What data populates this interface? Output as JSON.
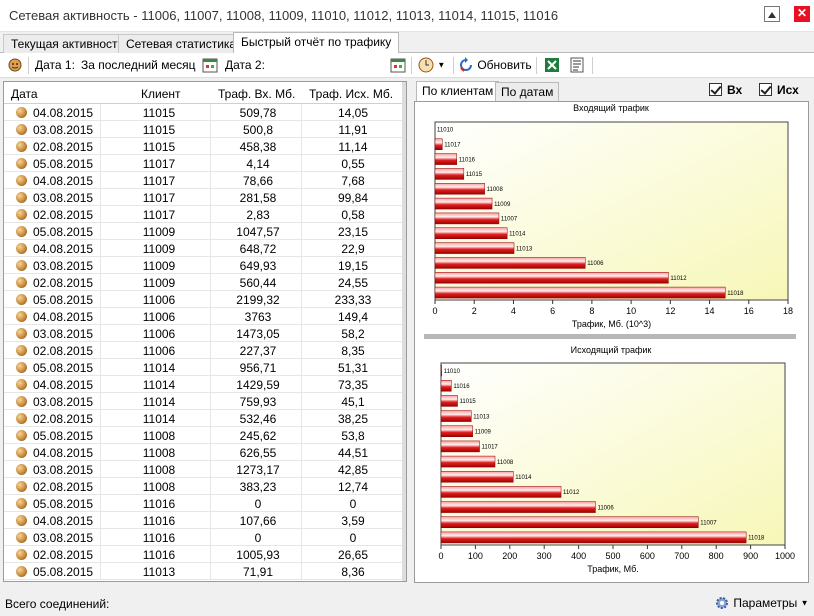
{
  "window": {
    "title": "Сетевая активность - 11006, 11007, 11008, 11009, 11010, 11012, 11013, 11014, 11015, 11016"
  },
  "tabs": [
    {
      "label": "Текущая активность"
    },
    {
      "label": "Сетевая статистика"
    },
    {
      "label": "Быстрый отчёт по трафику"
    }
  ],
  "toolbar": {
    "date1_label": "Дата 1:",
    "date1_value": "За последний месяц",
    "date2_label": "Дата 2:",
    "refresh_label": "Обновить"
  },
  "table": {
    "headers": [
      "Дата",
      "Клиент",
      "Траф. Вх. Мб.",
      "Траф. Исх. Мб."
    ],
    "rows": [
      [
        "04.08.2015",
        "11015",
        "509,78",
        "14,05"
      ],
      [
        "03.08.2015",
        "11015",
        "500,8",
        "11,91"
      ],
      [
        "02.08.2015",
        "11015",
        "458,38",
        "11,14"
      ],
      [
        "05.08.2015",
        "11017",
        "4,14",
        "0,55"
      ],
      [
        "04.08.2015",
        "11017",
        "78,66",
        "7,68"
      ],
      [
        "03.08.2015",
        "11017",
        "281,58",
        "99,84"
      ],
      [
        "02.08.2015",
        "11017",
        "2,83",
        "0,58"
      ],
      [
        "05.08.2015",
        "11009",
        "1047,57",
        "23,15"
      ],
      [
        "04.08.2015",
        "11009",
        "648,72",
        "22,9"
      ],
      [
        "03.08.2015",
        "11009",
        "649,93",
        "19,15"
      ],
      [
        "02.08.2015",
        "11009",
        "560,44",
        "24,55"
      ],
      [
        "05.08.2015",
        "11006",
        "2199,32",
        "233,33"
      ],
      [
        "04.08.2015",
        "11006",
        "3763",
        "149,4"
      ],
      [
        "03.08.2015",
        "11006",
        "1473,05",
        "58,2"
      ],
      [
        "02.08.2015",
        "11006",
        "227,37",
        "8,35"
      ],
      [
        "05.08.2015",
        "11014",
        "956,71",
        "51,31"
      ],
      [
        "04.08.2015",
        "11014",
        "1429,59",
        "73,35"
      ],
      [
        "03.08.2015",
        "11014",
        "759,93",
        "45,1"
      ],
      [
        "02.08.2015",
        "11014",
        "532,46",
        "38,25"
      ],
      [
        "05.08.2015",
        "11008",
        "245,62",
        "53,8"
      ],
      [
        "04.08.2015",
        "11008",
        "626,55",
        "44,51"
      ],
      [
        "03.08.2015",
        "11008",
        "1273,17",
        "42,85"
      ],
      [
        "02.08.2015",
        "11008",
        "383,23",
        "12,74"
      ],
      [
        "05.08.2015",
        "11016",
        "0",
        "0"
      ],
      [
        "04.08.2015",
        "11016",
        "107,66",
        "3,59"
      ],
      [
        "03.08.2015",
        "11016",
        "0",
        "0"
      ],
      [
        "02.08.2015",
        "11016",
        "1005,93",
        "26,65"
      ],
      [
        "05.08.2015",
        "11013",
        "71,91",
        "8,36"
      ]
    ]
  },
  "right_tabs": [
    {
      "label": "По клиентам"
    },
    {
      "label": "По датам"
    }
  ],
  "checkboxes": {
    "in_label": "Вх",
    "out_label": "Исх",
    "in_checked": true,
    "out_checked": true
  },
  "chart_data": [
    {
      "type": "bar",
      "orientation": "horizontal",
      "title": "Входящий трафик",
      "xlabel": "Трафик, Мб. (10^3)",
      "xlim": [
        0,
        18
      ],
      "xticks": [
        0,
        2,
        4,
        6,
        8,
        10,
        12,
        14,
        16,
        18
      ],
      "categories": [
        "11010",
        "11017",
        "11016",
        "11015",
        "11008",
        "11009",
        "11007",
        "11014",
        "11013",
        "11006",
        "11012",
        "11018"
      ],
      "values": [
        0,
        0.37,
        1.11,
        1.47,
        2.53,
        2.91,
        3.26,
        3.68,
        4.03,
        7.66,
        11.9,
        14.8
      ]
    },
    {
      "type": "bar",
      "orientation": "horizontal",
      "title": "Исходящий трафик",
      "xlabel": "Трафик, Мб.",
      "xlim": [
        0,
        1000
      ],
      "xticks": [
        0,
        100,
        200,
        300,
        400,
        500,
        600,
        700,
        800,
        900,
        1000
      ],
      "categories": [
        "11010",
        "11016",
        "11015",
        "11013",
        "11009",
        "11017",
        "11008",
        "11014",
        "11012",
        "11006",
        "11007",
        "11018"
      ],
      "values": [
        2,
        30,
        48,
        88,
        92,
        112,
        157,
        210,
        349,
        449,
        748,
        887
      ]
    }
  ],
  "statusbar": {
    "connections_label": "Всего соединений:",
    "params_label": "Параметры"
  },
  "colors": {
    "bar_fill": "#e02020",
    "chart_bg_from": "#ffffff",
    "chart_bg_to": "#f7f7b8"
  }
}
